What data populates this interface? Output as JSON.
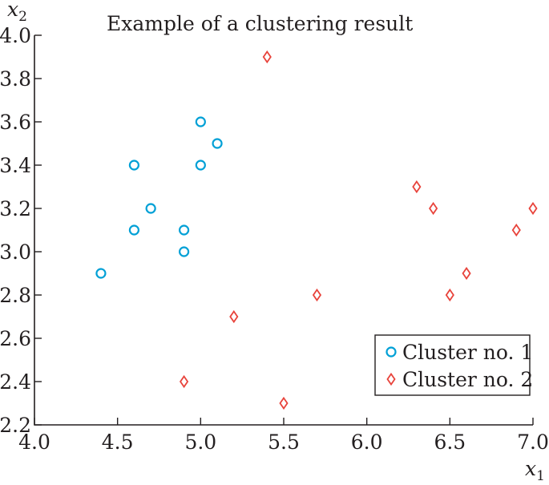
{
  "chart_data": {
    "type": "scatter",
    "title": "Example of a clustering result",
    "xlabel": "x",
    "xlabel_sub": "1",
    "ylabel": "x",
    "ylabel_sub": "2",
    "xlim": [
      4.0,
      7.0
    ],
    "ylim": [
      2.2,
      4.0
    ],
    "xticks": [
      "4.0",
      "4.5",
      "5.0",
      "5.5",
      "6.0",
      "6.5",
      "7.0"
    ],
    "yticks": [
      "2.2",
      "2.4",
      "2.6",
      "2.8",
      "3.0",
      "3.2",
      "3.4",
      "3.6",
      "3.8",
      "4.0"
    ],
    "grid": false,
    "legend_position": "bottom-right",
    "series": [
      {
        "name": "Cluster no. 1",
        "marker": "circle",
        "color": "#00a0d6",
        "points": [
          [
            4.4,
            2.9
          ],
          [
            4.6,
            3.1
          ],
          [
            4.6,
            3.4
          ],
          [
            4.7,
            3.2
          ],
          [
            4.9,
            3.0
          ],
          [
            4.9,
            3.1
          ],
          [
            5.0,
            3.4
          ],
          [
            5.0,
            3.6
          ],
          [
            5.1,
            3.5
          ]
        ]
      },
      {
        "name": "Cluster no. 2",
        "marker": "diamond",
        "color": "#e8433b",
        "points": [
          [
            4.9,
            2.4
          ],
          [
            5.2,
            2.7
          ],
          [
            5.4,
            3.9
          ],
          [
            5.5,
            2.3
          ],
          [
            5.7,
            2.8
          ],
          [
            6.3,
            3.3
          ],
          [
            6.4,
            3.2
          ],
          [
            6.5,
            2.8
          ],
          [
            6.6,
            2.9
          ],
          [
            6.9,
            3.1
          ],
          [
            7.0,
            3.2
          ]
        ]
      }
    ]
  }
}
